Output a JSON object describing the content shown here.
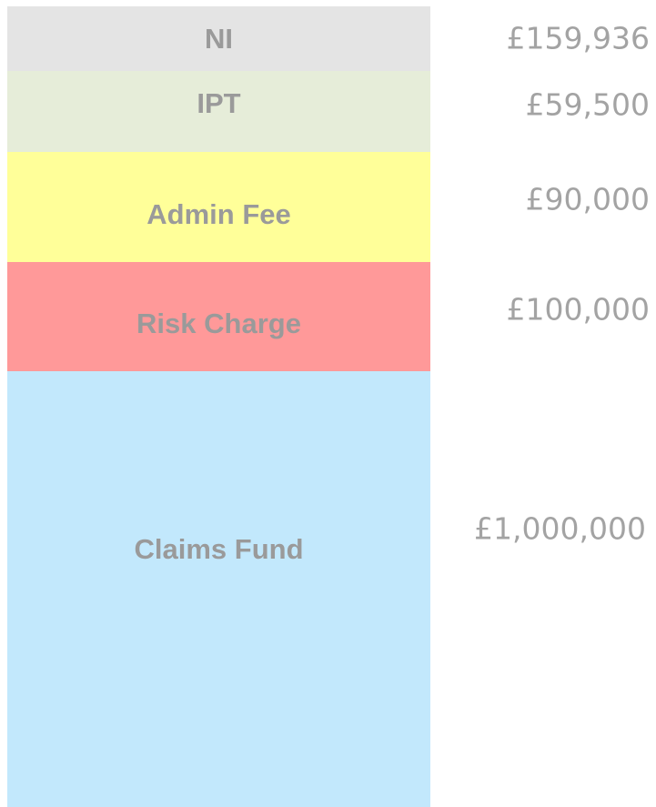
{
  "segments": [
    {
      "label": "NI",
      "amount": "£159,936"
    },
    {
      "label": "IPT",
      "amount": "£59,500"
    },
    {
      "label": "Admin Fee",
      "amount": "£90,000"
    },
    {
      "label": "Risk Charge",
      "amount": "£100,000"
    },
    {
      "label": "Claims Fund",
      "amount": "£1,000,000"
    }
  ]
}
